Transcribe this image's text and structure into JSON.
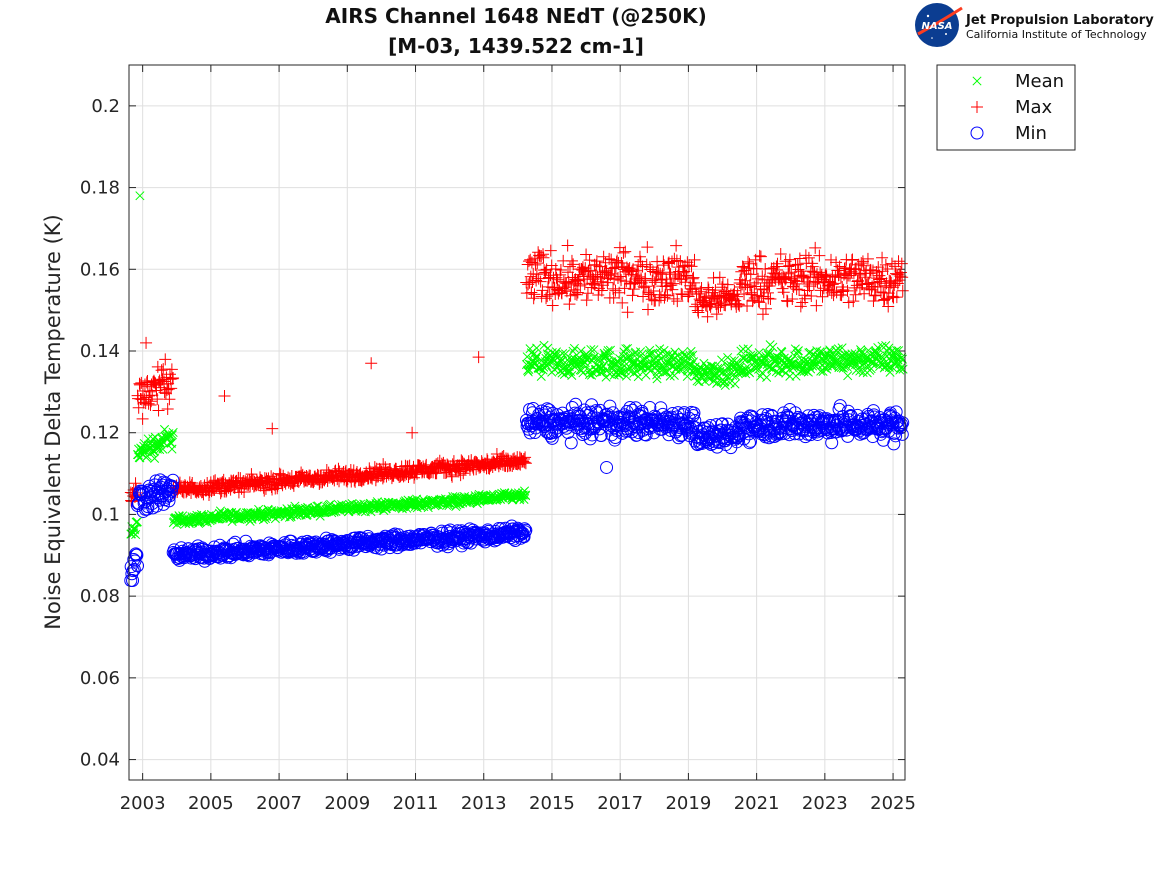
{
  "chart_data": {
    "type": "scatter",
    "title": "AIRS Channel 1648 NEdT (@250K)",
    "subtitle": "[M-03, 1439.522 cm-1]",
    "xlabel": "",
    "ylabel": "Noise Equivalent Delta Temperature (K)",
    "xlim": [
      2002.6,
      2025.35
    ],
    "ylim": [
      0.035,
      0.21
    ],
    "xticks": [
      2003,
      2005,
      2007,
      2009,
      2011,
      2013,
      2015,
      2017,
      2019,
      2021,
      2023,
      2025
    ],
    "xtick_labels": [
      "2003",
      "2005",
      "2007",
      "2009",
      "2011",
      "2013",
      "2015",
      "2017",
      "2019",
      "2021",
      "2023",
      "2025"
    ],
    "yticks": [
      0.04,
      0.06,
      0.08,
      0.1,
      0.12,
      0.14,
      0.16,
      0.18,
      0.2
    ],
    "ytick_labels": [
      "0.04",
      "0.06",
      "0.08",
      "0.1",
      "0.12",
      "0.14",
      "0.16",
      "0.18",
      "0.2"
    ],
    "grid": true,
    "legend_position": "outside-top-right",
    "series": [
      {
        "name": "Mean",
        "marker": "x",
        "color": "#00ff00",
        "segments": [
          {
            "x0": 2002.65,
            "x1": 2002.85,
            "y0": 0.095,
            "y1": 0.097,
            "noise": 0.0015
          },
          {
            "x0": 2002.85,
            "x1": 2003.9,
            "y0": 0.115,
            "y1": 0.119,
            "noise": 0.002
          },
          {
            "x0": 2003.9,
            "x1": 2014.25,
            "y0": 0.0985,
            "y1": 0.1045,
            "noise": 0.0008
          },
          {
            "x0": 2014.25,
            "x1": 2019.2,
            "y0": 0.137,
            "y1": 0.137,
            "noise": 0.0025
          },
          {
            "x0": 2019.2,
            "x1": 2020.5,
            "y0": 0.135,
            "y1": 0.135,
            "noise": 0.002
          },
          {
            "x0": 2020.5,
            "x1": 2025.3,
            "y0": 0.137,
            "y1": 0.138,
            "noise": 0.0025
          }
        ],
        "outliers": [
          {
            "x": 2002.92,
            "y": 0.178
          }
        ]
      },
      {
        "name": "Max",
        "marker": "+",
        "color": "#ff0000",
        "segments": [
          {
            "x0": 2002.65,
            "x1": 2002.85,
            "y0": 0.104,
            "y1": 0.106,
            "noise": 0.002
          },
          {
            "x0": 2002.85,
            "x1": 2003.9,
            "y0": 0.129,
            "y1": 0.133,
            "noise": 0.0035
          },
          {
            "x0": 2003.9,
            "x1": 2014.25,
            "y0": 0.106,
            "y1": 0.113,
            "noise": 0.0012
          },
          {
            "x0": 2014.25,
            "x1": 2019.2,
            "y0": 0.158,
            "y1": 0.158,
            "noise": 0.0045
          },
          {
            "x0": 2019.2,
            "x1": 2020.5,
            "y0": 0.153,
            "y1": 0.153,
            "noise": 0.003
          },
          {
            "x0": 2020.5,
            "x1": 2025.3,
            "y0": 0.157,
            "y1": 0.158,
            "noise": 0.0045
          }
        ],
        "outliers": [
          {
            "x": 2003.1,
            "y": 0.142
          },
          {
            "x": 2005.4,
            "y": 0.129
          },
          {
            "x": 2006.8,
            "y": 0.121
          },
          {
            "x": 2009.7,
            "y": 0.137
          },
          {
            "x": 2010.9,
            "y": 0.12
          },
          {
            "x": 2012.85,
            "y": 0.1385
          }
        ]
      },
      {
        "name": "Min",
        "marker": "o",
        "color": "#0000ff",
        "segments": [
          {
            "x0": 2002.65,
            "x1": 2002.85,
            "y0": 0.085,
            "y1": 0.089,
            "noise": 0.0025
          },
          {
            "x0": 2002.85,
            "x1": 2003.9,
            "y0": 0.104,
            "y1": 0.106,
            "noise": 0.0025
          },
          {
            "x0": 2003.9,
            "x1": 2014.25,
            "y0": 0.09,
            "y1": 0.0955,
            "noise": 0.0012
          },
          {
            "x0": 2014.25,
            "x1": 2019.2,
            "y0": 0.1225,
            "y1": 0.1225,
            "noise": 0.0025
          },
          {
            "x0": 2019.2,
            "x1": 2020.5,
            "y0": 0.119,
            "y1": 0.119,
            "noise": 0.002
          },
          {
            "x0": 2020.5,
            "x1": 2025.3,
            "y0": 0.122,
            "y1": 0.122,
            "noise": 0.0025
          }
        ],
        "outliers": [
          {
            "x": 2016.6,
            "y": 0.1115
          }
        ]
      }
    ]
  },
  "logo": {
    "agency": "NASA",
    "org_title": "Jet Propulsion Laboratory",
    "org_subtitle": "California Institute of Technology"
  }
}
